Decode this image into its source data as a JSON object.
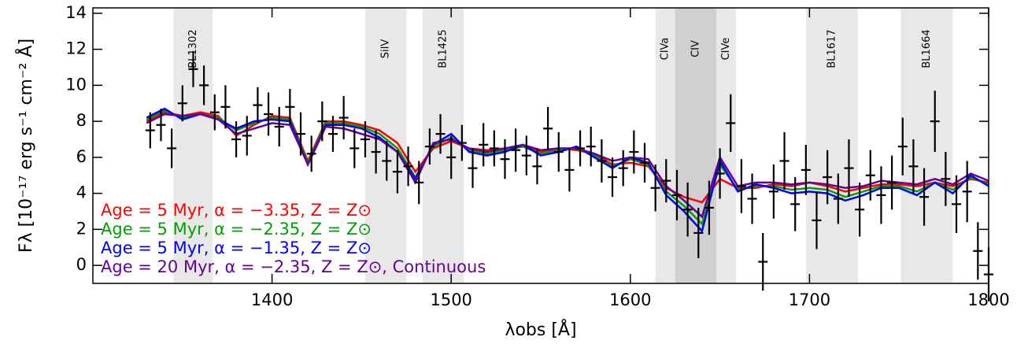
{
  "chart_data": {
    "type": "spectrum",
    "x_label": "λobs [Å]",
    "y_label": "Fλ [10⁻¹⁷ erg s⁻¹ cm⁻² Å]",
    "xlim": [
      1300,
      1800
    ],
    "ylim": [
      -1,
      14.3
    ],
    "xticks": [
      1400,
      1500,
      1600,
      1700,
      1800
    ],
    "yticks": [
      0,
      2,
      4,
      6,
      8,
      10,
      12,
      14
    ],
    "bands": [
      {
        "label": "BL1302",
        "range": [
          1345,
          1367
        ],
        "color": "#e8e8e8"
      },
      {
        "label": "SiIV",
        "range": [
          1452,
          1475
        ],
        "color": "#e8e8e8"
      },
      {
        "label": "BL1425",
        "range": [
          1484,
          1507
        ],
        "color": "#e8e8e8"
      },
      {
        "label": "CIVa",
        "range": [
          1614,
          1625
        ],
        "color": "#e8e8e8"
      },
      {
        "label": "CIV",
        "range": [
          1625,
          1648
        ],
        "color": "#d0d0d0"
      },
      {
        "label": "CIVe",
        "range": [
          1648,
          1659
        ],
        "color": "#e8e8e8"
      },
      {
        "label": "BL1617",
        "range": [
          1698,
          1727
        ],
        "color": "#e8e8e8"
      },
      {
        "label": "BL1664",
        "range": [
          1751,
          1780
        ],
        "color": "#e8e8e8"
      }
    ],
    "data": {
      "color": "#000000",
      "x": [
        1332,
        1338,
        1344,
        1350,
        1356,
        1362,
        1368,
        1374,
        1380,
        1386,
        1392,
        1398,
        1404,
        1410,
        1416,
        1422,
        1428,
        1434,
        1440,
        1446,
        1452,
        1458,
        1464,
        1470,
        1476,
        1482,
        1488,
        1494,
        1500,
        1506,
        1512,
        1518,
        1524,
        1530,
        1536,
        1542,
        1548,
        1554,
        1560,
        1566,
        1572,
        1578,
        1584,
        1590,
        1596,
        1602,
        1608,
        1614,
        1620,
        1626,
        1632,
        1638,
        1644,
        1650,
        1656,
        1662,
        1668,
        1674,
        1680,
        1686,
        1692,
        1698,
        1704,
        1710,
        1716,
        1722,
        1728,
        1734,
        1740,
        1746,
        1752,
        1758,
        1764,
        1770,
        1776,
        1782,
        1788,
        1794,
        1800
      ],
      "values": [
        7.5,
        7.8,
        6.5,
        9.0,
        10.9,
        10.0,
        8.5,
        8.8,
        7.0,
        7.2,
        8.9,
        8.4,
        7.7,
        8.8,
        7.3,
        6.2,
        8.0,
        7.3,
        8.2,
        6.5,
        7.0,
        6.3,
        5.8,
        5.2,
        5.5,
        4.6,
        6.6,
        7.3,
        6.0,
        6.8,
        5.4,
        6.7,
        6.5,
        5.9,
        6.4,
        6.1,
        5.5,
        7.6,
        6.3,
        5.3,
        6.5,
        6.6,
        5.8,
        4.9,
        5.4,
        6.3,
        5.7,
        4.3,
        4.7,
        3.9,
        3.1,
        1.8,
        3.2,
        5.1,
        7.9,
        4.4,
        3.7,
        0.2,
        4.1,
        5.8,
        3.4,
        5.3,
        2.5,
        4.9,
        3.7,
        5.4,
        3.1,
        5.0,
        3.9,
        4.6,
        6.6,
        5.5,
        3.8,
        8.0,
        4.8,
        3.4,
        4.1,
        0.8,
        -0.5
      ],
      "errors": [
        1.0,
        0.9,
        1.1,
        1.0,
        1.0,
        1.1,
        1.0,
        1.2,
        1.0,
        1.1,
        1.0,
        1.2,
        1.1,
        1.0,
        1.2,
        1.0,
        1.1,
        1.0,
        1.2,
        1.1,
        1.0,
        1.2,
        1.1,
        1.2,
        1.1,
        1.2,
        1.0,
        1.1,
        1.2,
        1.0,
        1.1,
        1.2,
        1.0,
        1.1,
        1.2,
        1.1,
        1.0,
        1.2,
        1.1,
        1.2,
        1.0,
        1.1,
        1.2,
        1.1,
        1.0,
        1.2,
        1.1,
        1.3,
        1.2,
        1.4,
        1.5,
        1.4,
        1.5,
        1.4,
        1.6,
        1.5,
        1.4,
        1.6,
        1.5,
        1.6,
        1.5,
        1.4,
        1.6,
        1.5,
        1.4,
        1.6,
        1.5,
        1.4,
        1.6,
        1.5,
        1.6,
        1.5,
        1.6,
        1.7,
        1.5,
        1.6,
        1.7,
        1.6,
        1.5
      ]
    },
    "model_x": [
      1330,
      1340,
      1350,
      1360,
      1370,
      1380,
      1390,
      1400,
      1410,
      1420,
      1430,
      1440,
      1450,
      1460,
      1470,
      1480,
      1490,
      1500,
      1510,
      1520,
      1530,
      1540,
      1550,
      1560,
      1570,
      1580,
      1590,
      1600,
      1610,
      1620,
      1630,
      1640,
      1650,
      1660,
      1670,
      1680,
      1690,
      1700,
      1710,
      1720,
      1730,
      1740,
      1750,
      1760,
      1770,
      1780,
      1790,
      1800
    ],
    "series": [
      {
        "name": "Age =  5 Myr, α = −3.35, Z = Z⊙",
        "color": "#ff0000",
        "values": [
          8.0,
          8.5,
          8.3,
          8.5,
          8.3,
          7.2,
          7.8,
          8.3,
          8.2,
          5.8,
          8.0,
          8.0,
          7.8,
          7.5,
          6.8,
          5.2,
          6.5,
          6.9,
          6.5,
          6.4,
          6.5,
          6.6,
          6.3,
          6.5,
          6.4,
          6.2,
          5.6,
          5.7,
          5.5,
          4.3,
          3.8,
          3.5,
          4.8,
          4.3,
          4.3,
          4.5,
          4.4,
          4.6,
          4.4,
          4.1,
          4.3,
          4.5,
          4.5,
          4.4,
          4.6,
          4.4,
          4.8,
          4.6
        ]
      },
      {
        "name": "Age =  5 Myr, α = −2.35, Z = Z⊙",
        "color": "#00a000",
        "values": [
          8.1,
          8.6,
          8.2,
          8.4,
          8.2,
          7.5,
          7.9,
          8.2,
          8.1,
          5.7,
          7.9,
          7.9,
          7.7,
          7.3,
          6.5,
          4.9,
          6.6,
          7.1,
          6.4,
          6.2,
          6.4,
          6.6,
          6.2,
          6.4,
          6.5,
          6.1,
          5.5,
          5.9,
          5.6,
          4.1,
          3.3,
          2.3,
          5.6,
          4.2,
          4.4,
          4.4,
          4.2,
          4.3,
          4.2,
          3.8,
          4.1,
          4.4,
          4.4,
          4.1,
          4.6,
          4.2,
          4.9,
          4.5
        ]
      },
      {
        "name": "Age =  5 Myr, α = −1.35, Z = Z⊙",
        "color": "#0000ff",
        "values": [
          8.2,
          8.7,
          8.1,
          8.4,
          8.1,
          7.6,
          8.0,
          8.1,
          8.0,
          5.6,
          7.8,
          7.8,
          7.6,
          7.1,
          6.3,
          4.8,
          6.7,
          7.3,
          6.3,
          6.1,
          6.3,
          6.7,
          6.1,
          6.3,
          6.6,
          6.0,
          5.4,
          6.0,
          5.7,
          3.9,
          3.0,
          1.9,
          5.8,
          4.1,
          4.5,
          4.3,
          4.0,
          4.1,
          4.0,
          3.6,
          3.9,
          4.3,
          4.3,
          3.9,
          4.6,
          4.0,
          5.0,
          4.4
        ]
      },
      {
        "name": "Age = 20 Myr, α = −2.35, Z = Z⊙, Continuous",
        "color": "#660099",
        "values": [
          7.9,
          8.4,
          8.3,
          8.4,
          8.1,
          7.3,
          7.6,
          7.9,
          7.8,
          5.6,
          7.7,
          7.6,
          7.3,
          7.0,
          6.3,
          4.6,
          6.8,
          7.0,
          6.5,
          6.3,
          6.5,
          6.7,
          6.4,
          6.5,
          6.5,
          6.2,
          5.8,
          6.0,
          5.9,
          4.4,
          3.6,
          2.7,
          6.0,
          4.4,
          4.6,
          4.6,
          4.5,
          4.6,
          4.5,
          4.3,
          4.4,
          4.7,
          4.6,
          4.5,
          4.8,
          4.5,
          5.1,
          4.7
        ]
      }
    ]
  }
}
